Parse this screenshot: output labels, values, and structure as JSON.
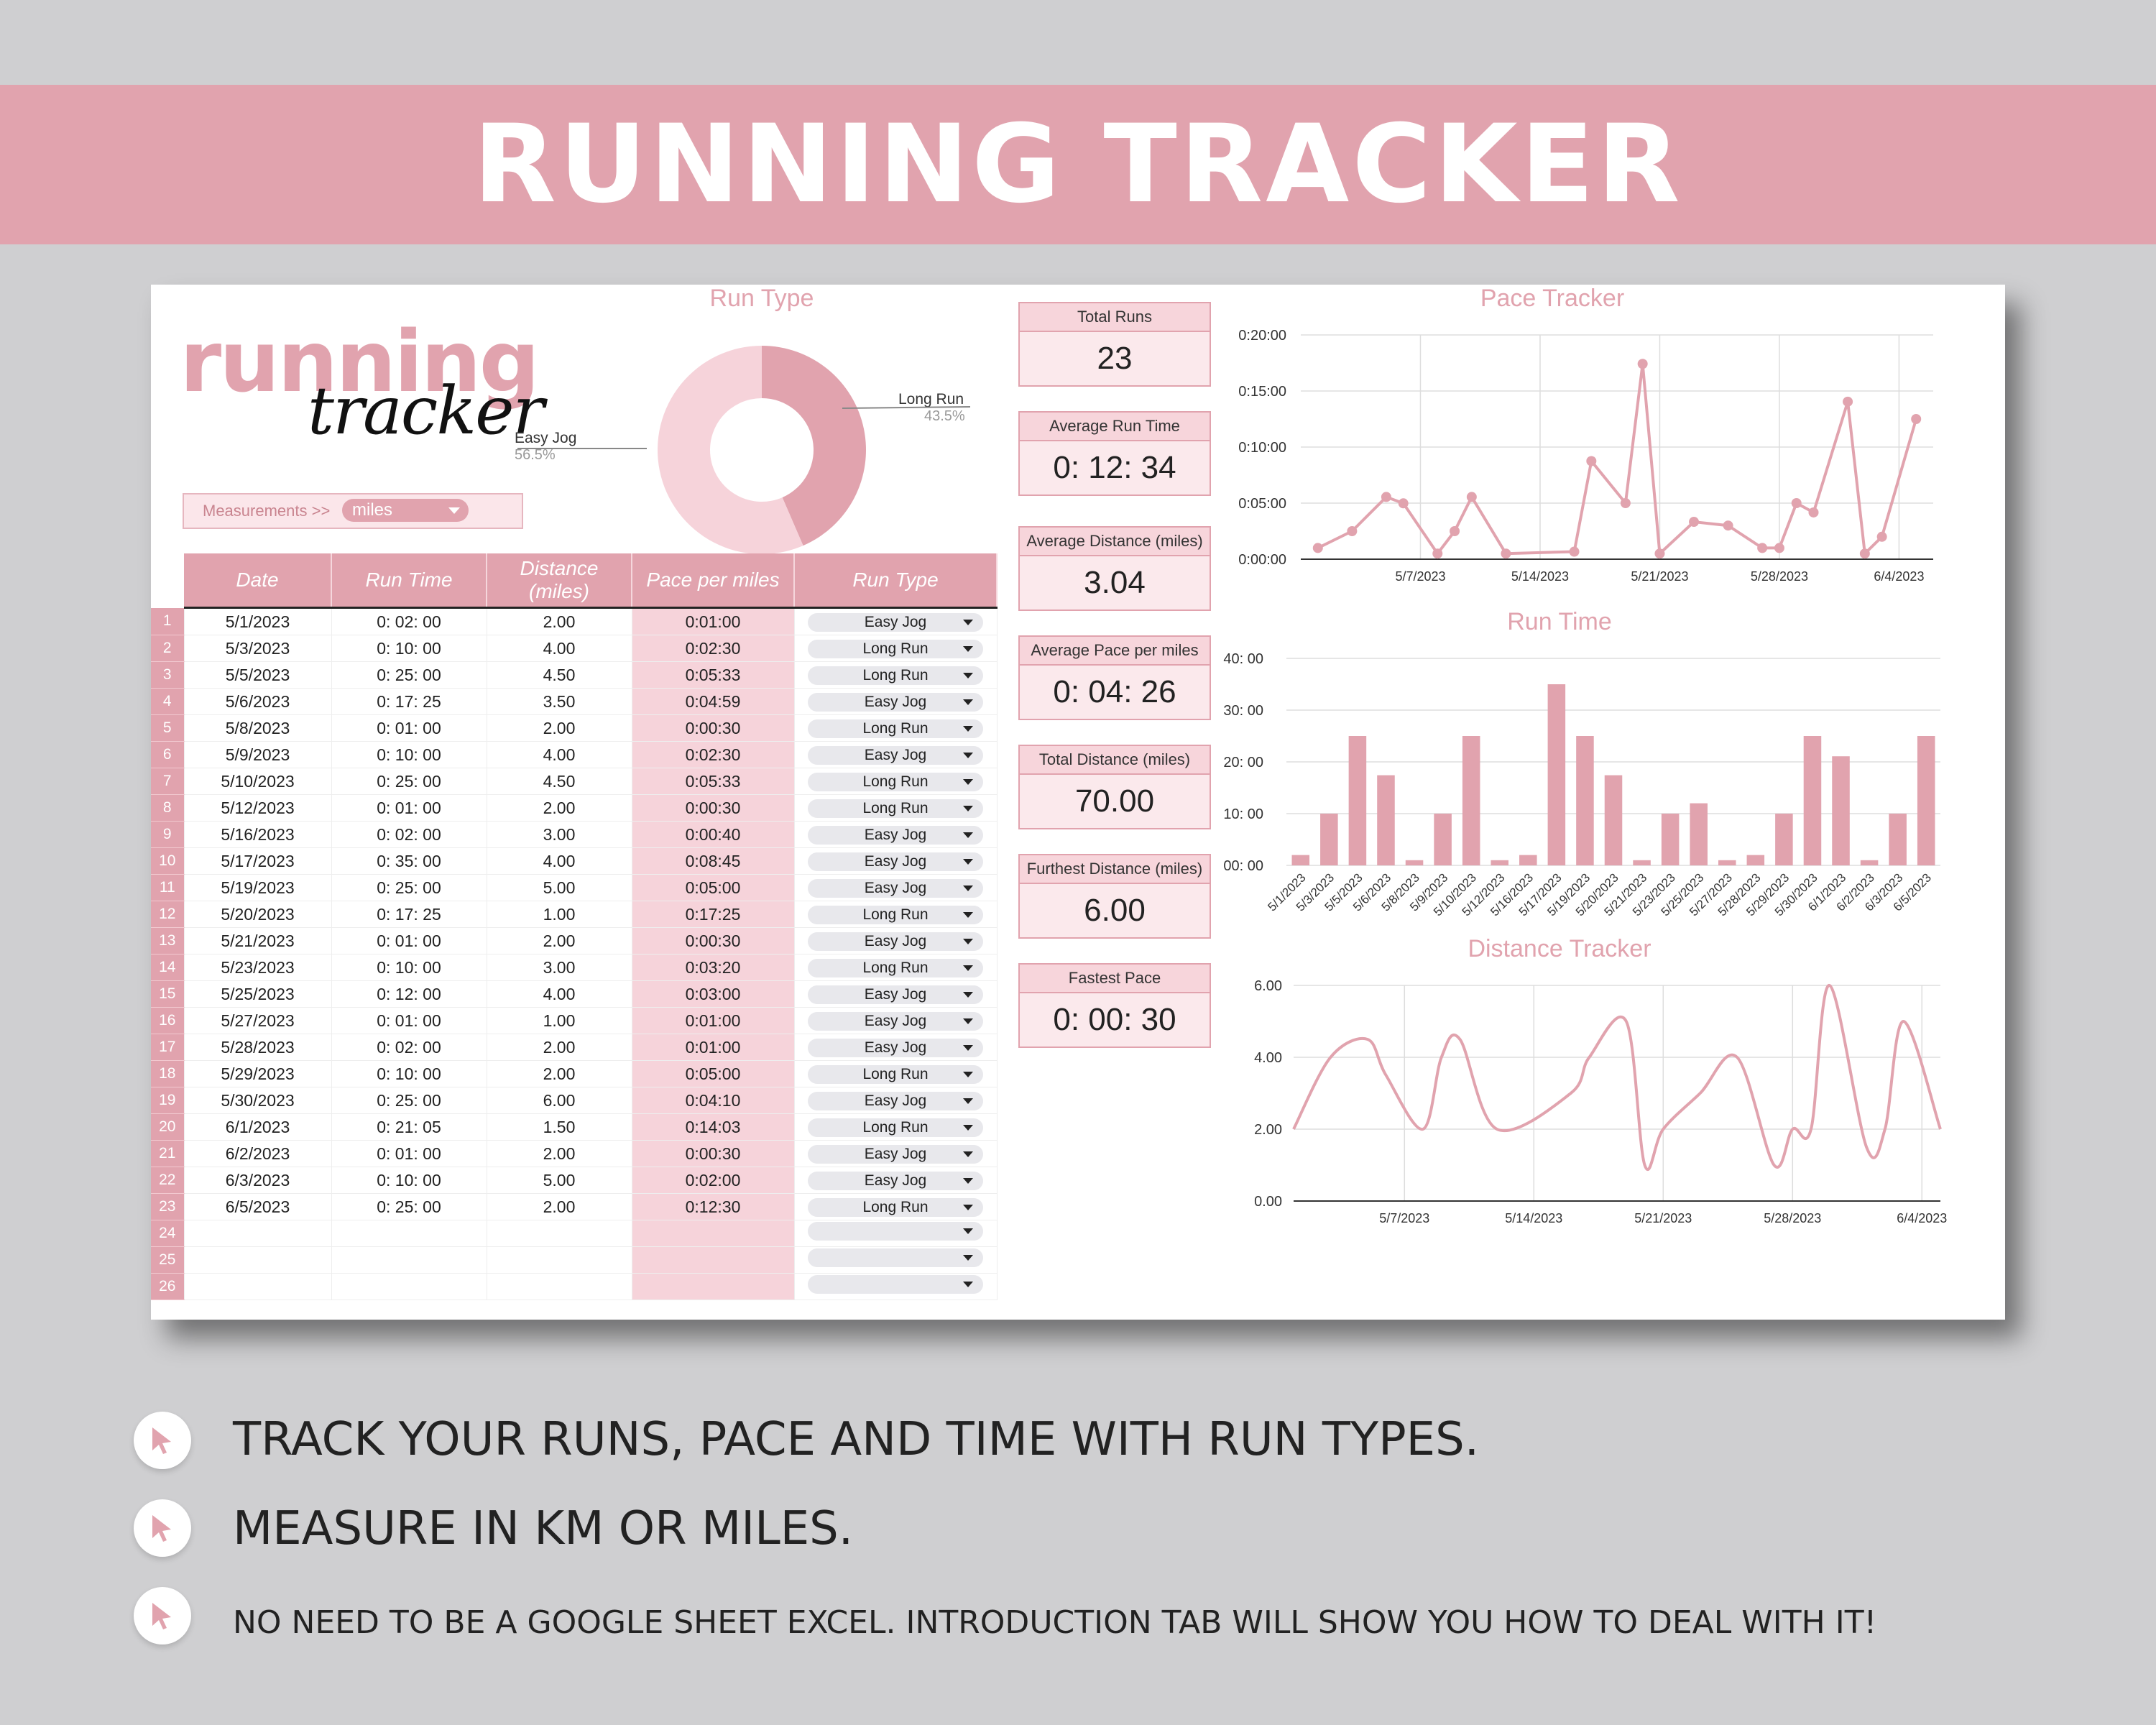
{
  "banner": {
    "title": "RUNNING TRACKER"
  },
  "logo": {
    "word1": "running",
    "word2": "tracker"
  },
  "measurements": {
    "label": "Measurements >>",
    "value": "miles"
  },
  "run_type_chart": {
    "title": "Run Type",
    "slices": [
      {
        "label": "Long Run",
        "pct": "43.5%",
        "value": 43.5,
        "color": "#e1a3ae"
      },
      {
        "label": "Easy Jog",
        "pct": "56.5%",
        "value": 56.5,
        "color": "#f6d3da"
      }
    ]
  },
  "table": {
    "headers": [
      "Date",
      "Run Time",
      "Distance (miles)",
      "Pace per miles",
      "Run Type"
    ],
    "rows": [
      {
        "n": "1",
        "date": "5/1/2023",
        "time": "0: 02: 00",
        "dist": "2.00",
        "pace": "0:01:00",
        "type": "Easy Jog"
      },
      {
        "n": "2",
        "date": "5/3/2023",
        "time": "0: 10: 00",
        "dist": "4.00",
        "pace": "0:02:30",
        "type": "Long Run"
      },
      {
        "n": "3",
        "date": "5/5/2023",
        "time": "0: 25: 00",
        "dist": "4.50",
        "pace": "0:05:33",
        "type": "Long Run"
      },
      {
        "n": "4",
        "date": "5/6/2023",
        "time": "0: 17: 25",
        "dist": "3.50",
        "pace": "0:04:59",
        "type": "Easy Jog"
      },
      {
        "n": "5",
        "date": "5/8/2023",
        "time": "0: 01: 00",
        "dist": "2.00",
        "pace": "0:00:30",
        "type": "Long Run"
      },
      {
        "n": "6",
        "date": "5/9/2023",
        "time": "0: 10: 00",
        "dist": "4.00",
        "pace": "0:02:30",
        "type": "Easy Jog"
      },
      {
        "n": "7",
        "date": "5/10/2023",
        "time": "0: 25: 00",
        "dist": "4.50",
        "pace": "0:05:33",
        "type": "Long Run"
      },
      {
        "n": "8",
        "date": "5/12/2023",
        "time": "0: 01: 00",
        "dist": "2.00",
        "pace": "0:00:30",
        "type": "Long Run"
      },
      {
        "n": "9",
        "date": "5/16/2023",
        "time": "0: 02: 00",
        "dist": "3.00",
        "pace": "0:00:40",
        "type": "Easy Jog"
      },
      {
        "n": "10",
        "date": "5/17/2023",
        "time": "0: 35: 00",
        "dist": "4.00",
        "pace": "0:08:45",
        "type": "Easy Jog"
      },
      {
        "n": "11",
        "date": "5/19/2023",
        "time": "0: 25: 00",
        "dist": "5.00",
        "pace": "0:05:00",
        "type": "Easy Jog"
      },
      {
        "n": "12",
        "date": "5/20/2023",
        "time": "0: 17: 25",
        "dist": "1.00",
        "pace": "0:17:25",
        "type": "Long Run"
      },
      {
        "n": "13",
        "date": "5/21/2023",
        "time": "0: 01: 00",
        "dist": "2.00",
        "pace": "0:00:30",
        "type": "Easy Jog"
      },
      {
        "n": "14",
        "date": "5/23/2023",
        "time": "0: 10: 00",
        "dist": "3.00",
        "pace": "0:03:20",
        "type": "Long Run"
      },
      {
        "n": "15",
        "date": "5/25/2023",
        "time": "0: 12: 00",
        "dist": "4.00",
        "pace": "0:03:00",
        "type": "Easy Jog"
      },
      {
        "n": "16",
        "date": "5/27/2023",
        "time": "0: 01: 00",
        "dist": "1.00",
        "pace": "0:01:00",
        "type": "Easy Jog"
      },
      {
        "n": "17",
        "date": "5/28/2023",
        "time": "0: 02: 00",
        "dist": "2.00",
        "pace": "0:01:00",
        "type": "Easy Jog"
      },
      {
        "n": "18",
        "date": "5/29/2023",
        "time": "0: 10: 00",
        "dist": "2.00",
        "pace": "0:05:00",
        "type": "Long Run"
      },
      {
        "n": "19",
        "date": "5/30/2023",
        "time": "0: 25: 00",
        "dist": "6.00",
        "pace": "0:04:10",
        "type": "Easy Jog"
      },
      {
        "n": "20",
        "date": "6/1/2023",
        "time": "0: 21: 05",
        "dist": "1.50",
        "pace": "0:14:03",
        "type": "Long Run"
      },
      {
        "n": "21",
        "date": "6/2/2023",
        "time": "0: 01: 00",
        "dist": "2.00",
        "pace": "0:00:30",
        "type": "Easy Jog"
      },
      {
        "n": "22",
        "date": "6/3/2023",
        "time": "0: 10: 00",
        "dist": "5.00",
        "pace": "0:02:00",
        "type": "Easy Jog"
      },
      {
        "n": "23",
        "date": "6/5/2023",
        "time": "0: 25: 00",
        "dist": "2.00",
        "pace": "0:12:30",
        "type": "Long Run"
      },
      {
        "n": "24",
        "date": "",
        "time": "",
        "dist": "",
        "pace": "",
        "type": ""
      },
      {
        "n": "25",
        "date": "",
        "time": "",
        "dist": "",
        "pace": "",
        "type": ""
      },
      {
        "n": "26",
        "date": "",
        "time": "",
        "dist": "",
        "pace": "",
        "type": ""
      }
    ]
  },
  "stats": [
    {
      "title": "Total Runs",
      "value": "23"
    },
    {
      "title": "Average Run Time",
      "value": "0: 12: 34"
    },
    {
      "title": "Average Distance (miles)",
      "value": "3.04"
    },
    {
      "title": "Average Pace per miles",
      "value": "0: 04: 26"
    },
    {
      "title": "Total Distance (miles)",
      "value": "70.00"
    },
    {
      "title": "Furthest Distance (miles)",
      "value": "6.00"
    },
    {
      "title": "Fastest Pace",
      "value": "0: 00: 30"
    }
  ],
  "chart_data": [
    {
      "type": "line",
      "title": "Pace Tracker",
      "ylabel": "",
      "y_ticks": [
        "0:00:00",
        "0:05:00",
        "0:10:00",
        "0:15:00",
        "0:20:00"
      ],
      "x_ticks": [
        "5/7/2023",
        "5/14/2023",
        "5/21/2023",
        "5/28/2023",
        "6/4/2023"
      ],
      "x": [
        "2023-05-01",
        "2023-05-03",
        "2023-05-05",
        "2023-05-06",
        "2023-05-08",
        "2023-05-09",
        "2023-05-10",
        "2023-05-12",
        "2023-05-16",
        "2023-05-17",
        "2023-05-19",
        "2023-05-20",
        "2023-05-21",
        "2023-05-23",
        "2023-05-25",
        "2023-05-27",
        "2023-05-28",
        "2023-05-29",
        "2023-05-30",
        "2023-06-01",
        "2023-06-02",
        "2023-06-03",
        "2023-06-05"
      ],
      "values_minutes": [
        1.0,
        2.5,
        5.55,
        4.98,
        0.5,
        2.5,
        5.55,
        0.5,
        0.67,
        8.75,
        5.0,
        17.42,
        0.5,
        3.33,
        3.0,
        1.0,
        1.0,
        5.0,
        4.17,
        14.05,
        0.5,
        2.0,
        12.5
      ],
      "ylim_minutes": [
        0,
        20
      ],
      "color": "#e1a3ae",
      "markers": true
    },
    {
      "type": "bar",
      "title": "Run Time",
      "y_ticks": [
        "0: 00: 00",
        "0: 10: 00",
        "0: 20: 00",
        "0: 30: 00",
        "0: 40: 00"
      ],
      "categories": [
        "5/1/2023",
        "5/3/2023",
        "5/5/2023",
        "5/6/2023",
        "5/8/2023",
        "5/9/2023",
        "5/10/2023",
        "5/12/2023",
        "5/16/2023",
        "5/17/2023",
        "5/19/2023",
        "5/20/2023",
        "5/21/2023",
        "5/23/2023",
        "5/25/2023",
        "5/27/2023",
        "5/28/2023",
        "5/29/2023",
        "5/30/2023",
        "6/1/2023",
        "6/2/2023",
        "6/3/2023",
        "6/5/2023"
      ],
      "values_minutes": [
        2,
        10,
        25,
        17.42,
        1,
        10,
        25,
        1,
        2,
        35,
        25,
        17.42,
        1,
        10,
        12,
        1,
        2,
        10,
        25,
        21.08,
        1,
        10,
        25
      ],
      "ylim_minutes": [
        0,
        40
      ],
      "color": "#e1a3ae"
    },
    {
      "type": "line",
      "title": "Distance Tracker",
      "y_ticks": [
        "0.00",
        "2.00",
        "4.00",
        "6.00"
      ],
      "x_ticks": [
        "5/7/2023",
        "5/14/2023",
        "5/21/2023",
        "5/28/2023",
        "6/4/2023"
      ],
      "x": [
        "2023-05-01",
        "2023-05-03",
        "2023-05-05",
        "2023-05-06",
        "2023-05-08",
        "2023-05-09",
        "2023-05-10",
        "2023-05-12",
        "2023-05-16",
        "2023-05-17",
        "2023-05-19",
        "2023-05-20",
        "2023-05-21",
        "2023-05-23",
        "2023-05-25",
        "2023-05-27",
        "2023-05-28",
        "2023-05-29",
        "2023-05-30",
        "2023-06-01",
        "2023-06-02",
        "2023-06-03",
        "2023-06-05"
      ],
      "values": [
        2.0,
        4.0,
        4.5,
        3.5,
        2.0,
        4.0,
        4.5,
        2.0,
        3.0,
        4.0,
        5.0,
        1.0,
        2.0,
        3.0,
        4.0,
        1.0,
        2.0,
        2.0,
        6.0,
        1.5,
        2.0,
        5.0,
        2.0
      ],
      "ylim": [
        0,
        6
      ],
      "color": "#e1a3ae",
      "smooth": true
    }
  ],
  "bullets": [
    "TRACK YOUR RUNS, PACE AND TIME WITH RUN TYPES.",
    "MEASURE IN KM OR MILES.",
    "NO NEED TO BE A GOOGLE SHEET EXCEL. INTRODUCTION TAB WILL SHOW YOU HOW TO DEAL WITH IT!"
  ]
}
